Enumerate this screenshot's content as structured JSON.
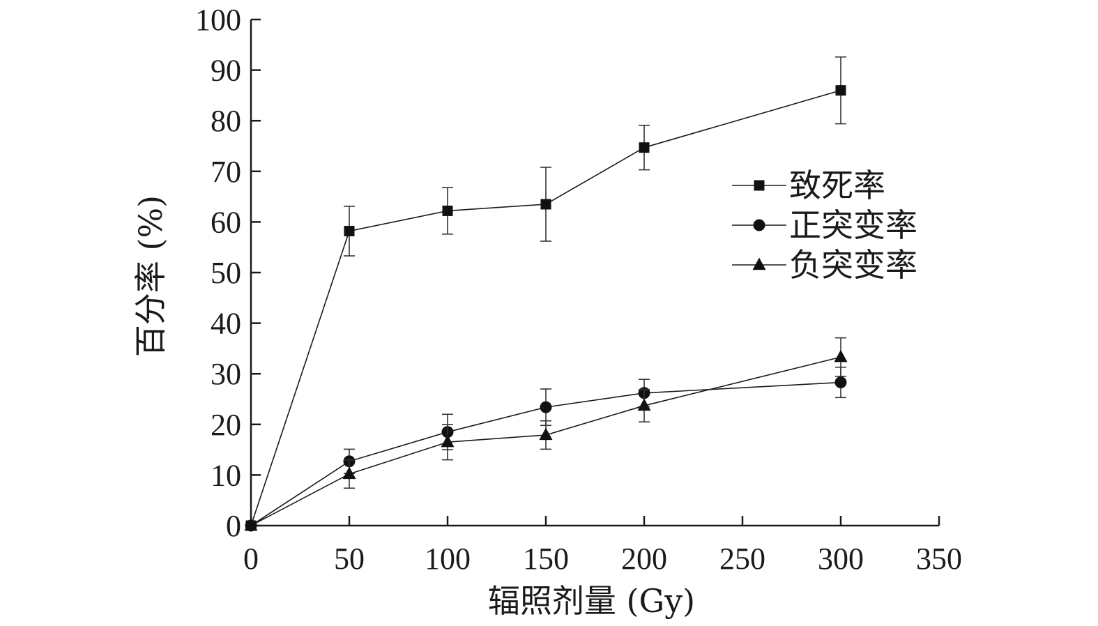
{
  "chart_data": {
    "type": "line",
    "title": "",
    "xlabel": "辐照剂量 (Gy)",
    "ylabel": "百分率 (%)",
    "xlim": [
      0,
      350
    ],
    "ylim": [
      0,
      100
    ],
    "xticks": [
      "0",
      "50",
      "100",
      "150",
      "200",
      "250",
      "300",
      "350"
    ],
    "yticks": [
      "0",
      "10",
      "20",
      "30",
      "40",
      "50",
      "60",
      "70",
      "80",
      "90",
      "100"
    ],
    "grid": false,
    "legend_position": "right",
    "x": [
      0,
      50,
      100,
      150,
      200,
      300
    ],
    "series": [
      {
        "name": "致死率",
        "marker": "square",
        "values": [
          0,
          58.2,
          62.2,
          63.5,
          74.7,
          86.0
        ],
        "errors": [
          0,
          4.9,
          4.6,
          7.3,
          4.4,
          6.6
        ]
      },
      {
        "name": "正突变率",
        "marker": "circle",
        "values": [
          0,
          12.7,
          18.5,
          23.4,
          26.2,
          28.3
        ],
        "errors": [
          0,
          2.4,
          3.5,
          3.6,
          2.7,
          3.0
        ]
      },
      {
        "name": "负突变率",
        "marker": "triangle",
        "values": [
          0,
          10.2,
          16.5,
          17.9,
          23.7,
          33.3
        ],
        "errors": [
          0,
          2.8,
          3.5,
          2.8,
          3.2,
          3.8
        ]
      }
    ]
  }
}
